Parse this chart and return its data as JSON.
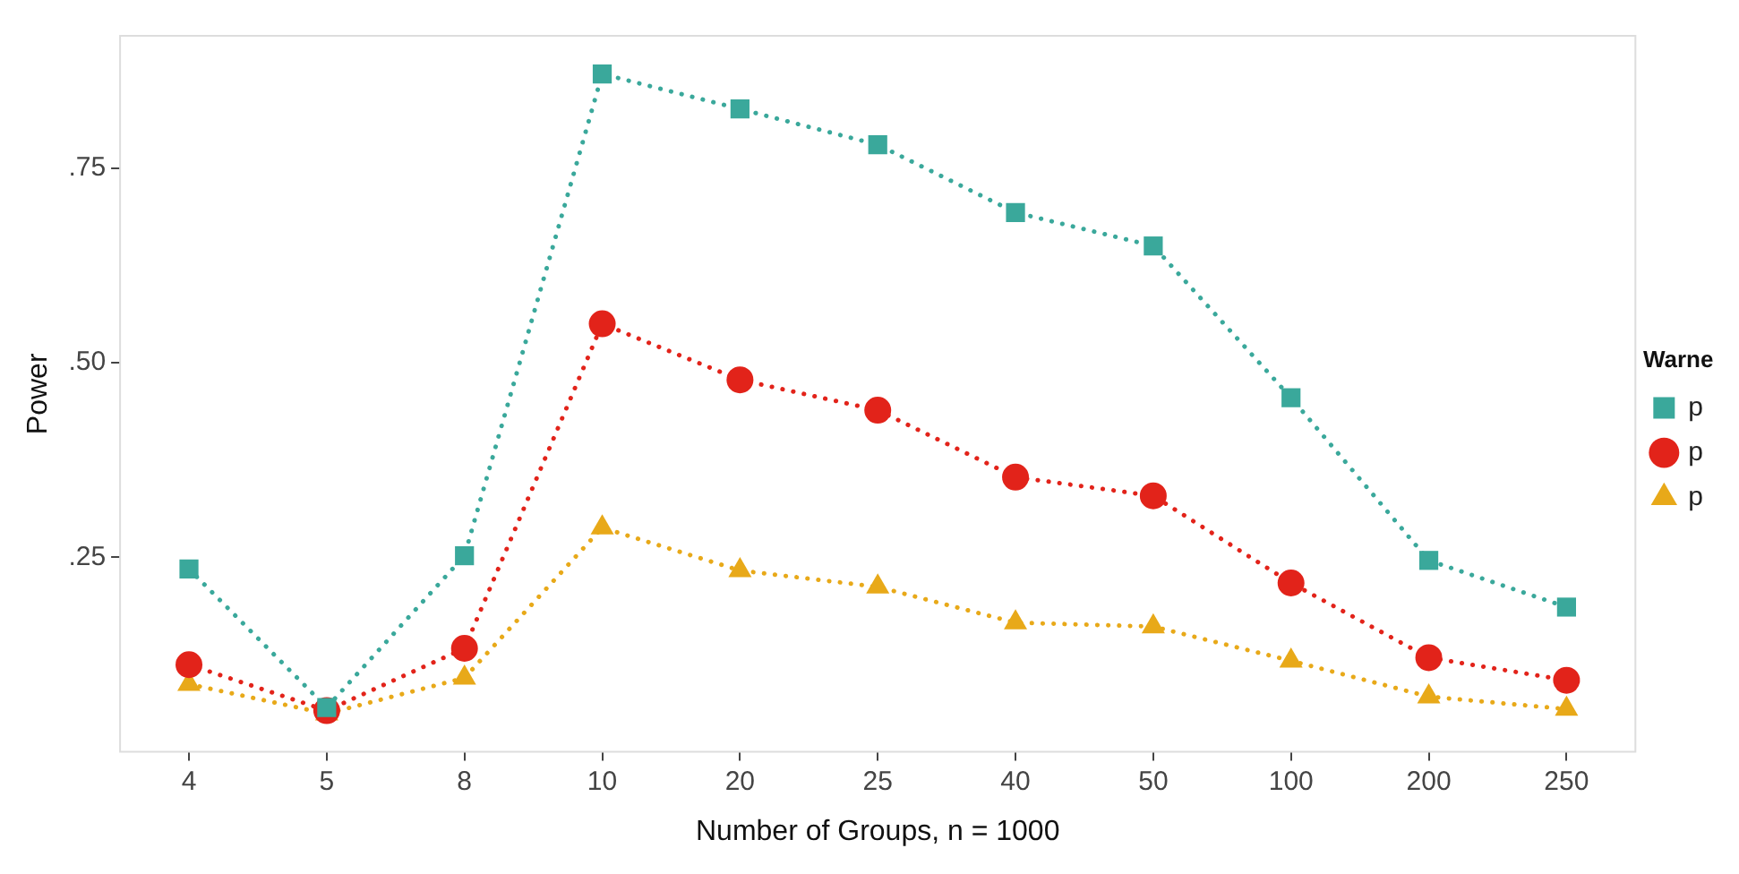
{
  "chart_data": {
    "type": "line",
    "xlabel": "Number of Groups, n = 1000",
    "ylabel": "Power",
    "legend_title": "Warne",
    "categories": [
      "4",
      "5",
      "8",
      "10",
      "20",
      "25",
      "40",
      "50",
      "100",
      "200",
      "250"
    ],
    "series": [
      {
        "name": "p",
        "color": "#3aa89b",
        "marker": "square",
        "values": [
          0.235,
          0.057,
          0.252,
          0.871,
          0.826,
          0.78,
          0.693,
          0.65,
          0.455,
          0.246,
          0.186
        ]
      },
      {
        "name": "p",
        "color": "#e2231a",
        "marker": "circle",
        "values": [
          0.112,
          0.053,
          0.133,
          0.55,
          0.478,
          0.439,
          0.353,
          0.329,
          0.217,
          0.121,
          0.092
        ]
      },
      {
        "name": "p",
        "color": "#e8a919",
        "marker": "triangle",
        "values": [
          0.087,
          0.049,
          0.095,
          0.288,
          0.233,
          0.212,
          0.166,
          0.161,
          0.117,
          0.071,
          0.055
        ]
      }
    ],
    "ylim": [
      0,
      0.92
    ],
    "yticks": [
      {
        "value": 0.25,
        "label": ".25"
      },
      {
        "value": 0.5,
        "label": ".50"
      },
      {
        "value": 0.75,
        "label": ".75"
      }
    ],
    "grid": false,
    "legend": "right",
    "line_style": "dotted"
  }
}
